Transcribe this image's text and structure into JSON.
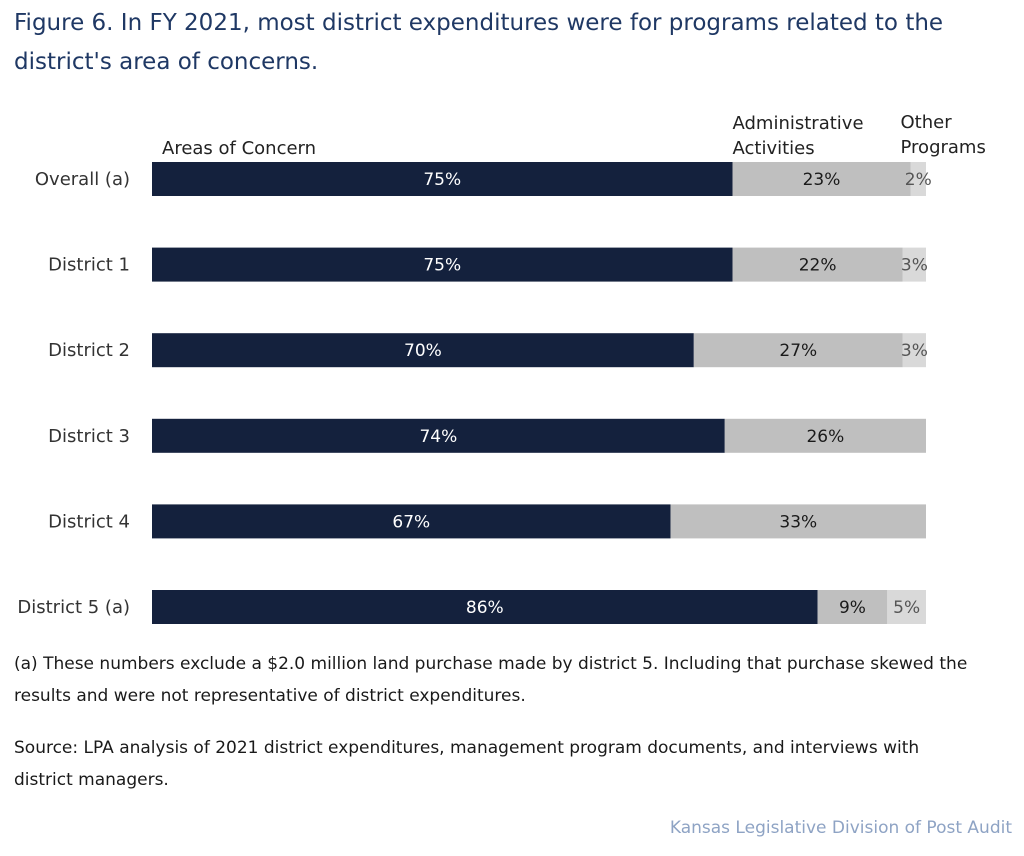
{
  "chart_data": {
    "type": "bar",
    "stacked": true,
    "orientation": "horizontal",
    "title": "Figure 6. In FY 2021, most district expenditures were for programs related to the district's area of concerns.",
    "categories": [
      "Overall (a)",
      "District 1",
      "District 2",
      "District 3",
      "District 4",
      "District 5 (a)"
    ],
    "series": [
      {
        "name": "Areas of Concern",
        "values": [
          75,
          75,
          70,
          74,
          67,
          86
        ],
        "color": "#14213d",
        "label_color": "#ffffff"
      },
      {
        "name": "Administrative Activities",
        "values": [
          23,
          22,
          27,
          26,
          33,
          9
        ],
        "color": "#bfbfbf",
        "label_color": "#1a1a1a"
      },
      {
        "name": "Other Programs",
        "values": [
          2,
          3,
          3,
          null,
          null,
          5
        ],
        "color": "#d9d9d9",
        "label_color": "#555555"
      }
    ],
    "value_suffix": "%",
    "xlim": [
      0,
      100
    ],
    "xlabel": "",
    "ylabel": "",
    "grid": false
  },
  "footnote": "(a) These numbers exclude a $2.0 million land purchase made by district 5.  Including that purchase skewed the results and were not representative of district expenditures.",
  "source": "Source: LPA analysis of 2021 district expenditures, management program documents, and interviews with district managers.",
  "credit": "Kansas Legislative Division of Post Audit"
}
